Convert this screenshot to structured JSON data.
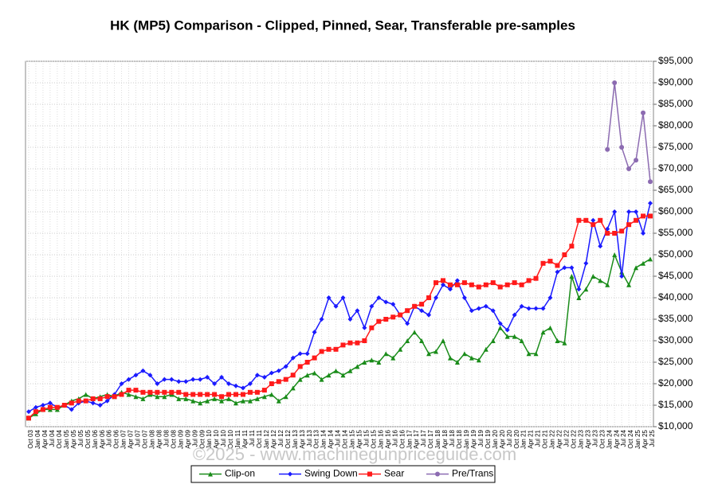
{
  "chart_data": {
    "type": "line",
    "title": "HK (MP5) Comparison - Clipped, Pinned, Sear, Transferable pre-samples",
    "watermark": "©2025 - www.machinegunpriceguide.com",
    "categories": [
      "Oct 03",
      "Jan 04",
      "Apr 04",
      "Jul 04",
      "Oct 04",
      "Jan 05",
      "Apr 05",
      "Jul 05",
      "Oct 05",
      "Jan 06",
      "Apr 06",
      "Jul 06",
      "Oct 06",
      "Jan 07",
      "Apr 07",
      "Jul 07",
      "Oct 07",
      "Jan 08",
      "Apr 08",
      "Jul 08",
      "Oct 08",
      "Jan 09",
      "Apr 09",
      "Jul 09",
      "Oct 09",
      "Jan 10",
      "Apr 10",
      "Jul 10",
      "Oct 10",
      "Jan 11",
      "Apr 11",
      "Jul 11",
      "Oct 11",
      "Jan 12",
      "Apr 12",
      "Jul 12",
      "Oct 12",
      "Jan 13",
      "Apr 13",
      "Jul 13",
      "Oct 13",
      "Jan 14",
      "Apr 14",
      "Jul 14",
      "Oct 14",
      "Jan 15",
      "Apr 15",
      "Jul 15",
      "Oct 15",
      "Jan 16",
      "Apr 16",
      "Jul 16",
      "Oct 16",
      "Jan 17",
      "Apr 17",
      "Jul 17",
      "Oct 17",
      "Jan 18",
      "Apr 18",
      "Jul 18",
      "Oct 18",
      "Jan 19",
      "Apr 19",
      "Jul 19",
      "Oct 19",
      "Jan 20",
      "Apr 20",
      "Jul 20",
      "Oct 20",
      "Jan 21",
      "Apr 21",
      "Jul 21",
      "Oct 21",
      "Jan 22",
      "Apr 22",
      "Jul 22",
      "Oct 22",
      "Jan 23",
      "Apr 23",
      "Jul 23",
      "Oct 23",
      "Jan 24",
      "Apr 24",
      "Jul 24",
      "Oct 24",
      "Jan 25",
      "Apr 25",
      "Jul 25"
    ],
    "series": [
      {
        "name": "Clip-on",
        "color": "#1a8c1a",
        "values": [
          12000,
          13000,
          14000,
          14000,
          14000,
          15000,
          16000,
          16500,
          17500,
          16500,
          17000,
          17500,
          17000,
          18000,
          17500,
          17000,
          16500,
          17500,
          17000,
          17000,
          17500,
          16500,
          16500,
          16000,
          15500,
          16000,
          16500,
          16000,
          16500,
          15500,
          16000,
          16000,
          16500,
          17000,
          17500,
          16000,
          17000,
          19000,
          21000,
          22000,
          22500,
          21000,
          22000,
          23000,
          22000,
          23000,
          24000,
          25000,
          25500,
          25000,
          27000,
          26000,
          28000,
          30000,
          32000,
          30000,
          27000,
          27500,
          30000,
          26000,
          25000,
          27000,
          26000,
          25500,
          28000,
          30000,
          33000,
          31000,
          31000,
          30000,
          27000,
          27000,
          32000,
          33000,
          30000,
          29500,
          45000,
          40000,
          42000,
          45000,
          44000,
          43000,
          50000,
          46000,
          43000,
          47000,
          48000,
          49000
        ]
      },
      {
        "name": "Swing Down",
        "color": "#1a1aff",
        "values": [
          13500,
          14500,
          15000,
          15500,
          14500,
          15000,
          14000,
          15500,
          16000,
          15500,
          15000,
          16000,
          17500,
          20000,
          21000,
          22000,
          23000,
          22000,
          20000,
          21000,
          21000,
          20500,
          20500,
          21000,
          21000,
          21500,
          20000,
          21500,
          20000,
          19500,
          19000,
          20000,
          22000,
          21500,
          22500,
          23000,
          24000,
          26000,
          27000,
          27000,
          32000,
          35000,
          40000,
          38000,
          40000,
          35000,
          37000,
          33000,
          38000,
          40000,
          39000,
          38500,
          36000,
          34000,
          38000,
          37000,
          36000,
          40000,
          43000,
          42000,
          44000,
          40000,
          37000,
          37500,
          38000,
          37000,
          34000,
          32500,
          36000,
          38000,
          37500,
          37500,
          37500,
          40000,
          46000,
          47000,
          47000,
          42000,
          48000,
          58000,
          52000,
          56000,
          60000,
          45000,
          60000,
          60000,
          55000,
          62000
        ]
      },
      {
        "name": "Sear",
        "color": "#ff1a1a",
        "values": [
          12000,
          13500,
          14000,
          14500,
          14500,
          15000,
          15500,
          16000,
          16000,
          16500,
          16500,
          17000,
          17000,
          17500,
          18500,
          18500,
          18000,
          18000,
          18000,
          18000,
          18000,
          18000,
          17500,
          17500,
          17500,
          17500,
          17500,
          17000,
          17500,
          17500,
          17500,
          18000,
          18000,
          18500,
          20000,
          20500,
          21000,
          22000,
          24000,
          25000,
          26000,
          27500,
          28000,
          28000,
          29000,
          29500,
          29500,
          30000,
          33000,
          34500,
          35000,
          35500,
          36000,
          37000,
          38000,
          38500,
          40000,
          43500,
          44000,
          43000,
          43000,
          43500,
          43000,
          42500,
          43000,
          43500,
          42500,
          43000,
          43500,
          43000,
          44000,
          44500,
          48000,
          48500,
          47500,
          50000,
          52000,
          58000,
          58000,
          57000,
          58000,
          55000,
          55000,
          55500,
          57000,
          58000,
          59000,
          59000
        ]
      },
      {
        "name": "Pre/Trans",
        "color": "#8c6bb1",
        "values": [
          null,
          null,
          null,
          null,
          null,
          null,
          null,
          null,
          null,
          null,
          null,
          null,
          null,
          null,
          null,
          null,
          null,
          null,
          null,
          null,
          null,
          null,
          null,
          null,
          null,
          null,
          null,
          null,
          null,
          null,
          null,
          null,
          null,
          null,
          null,
          null,
          null,
          null,
          null,
          null,
          null,
          null,
          null,
          null,
          null,
          null,
          null,
          null,
          null,
          null,
          null,
          null,
          null,
          null,
          null,
          null,
          null,
          null,
          null,
          null,
          null,
          null,
          null,
          null,
          null,
          null,
          null,
          null,
          null,
          null,
          null,
          null,
          null,
          null,
          null,
          null,
          null,
          null,
          null,
          null,
          null,
          74500,
          90000,
          75000,
          70000,
          72000,
          83000,
          67000
        ]
      }
    ],
    "ylim": [
      10000,
      95000
    ],
    "yticks": [
      {
        "value": 10000,
        "label": "$10,000"
      },
      {
        "value": 15000,
        "label": "$15,000"
      },
      {
        "value": 20000,
        "label": "$20,000"
      },
      {
        "value": 25000,
        "label": "$25,000"
      },
      {
        "value": 30000,
        "label": "$30,000"
      },
      {
        "value": 35000,
        "label": "$35,000"
      },
      {
        "value": 40000,
        "label": "$40,000"
      },
      {
        "value": 45000,
        "label": "$45,000"
      },
      {
        "value": 50000,
        "label": "$50,000"
      },
      {
        "value": 55000,
        "label": "$55,000"
      },
      {
        "value": 60000,
        "label": "$60,000"
      },
      {
        "value": 65000,
        "label": "$65,000"
      },
      {
        "value": 70000,
        "label": "$70,000"
      },
      {
        "value": 75000,
        "label": "$75,000"
      },
      {
        "value": 80000,
        "label": "$80,000"
      },
      {
        "value": 85000,
        "label": "$85,000"
      },
      {
        "value": 90000,
        "label": "$90,000"
      },
      {
        "value": 95000,
        "label": "$95,000"
      }
    ],
    "grid": true,
    "legend": "bottom"
  }
}
